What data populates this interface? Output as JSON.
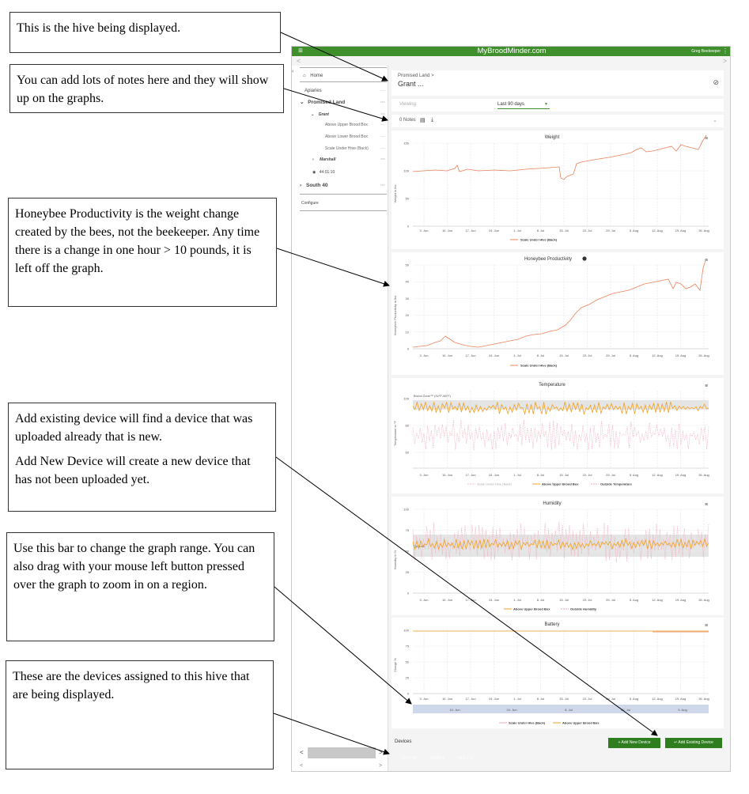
{
  "callouts": {
    "hive": "This is the hive being displayed.",
    "notes": "You can add lots of notes here and they will show up on the graphs.",
    "productivity": "Honeybee Productivity is the weight change created by the bees, not the beekeeper. Any time there is a change in one hour > 10 pounds, it is left off the graph.",
    "devices_add_existing": "Add existing device will find a device that was uploaded already that is new.",
    "devices_add_new": "Add New Device will create a new device that has not been uploaded yet.",
    "range_bar": "Use this bar to change the graph range. You can also drag with your mouse left button pressed over the graph to zoom in on a region.",
    "devices_assigned": "These are the devices assigned to this hive that are being displayed."
  },
  "app": {
    "brand": "MyBroodMinder.com",
    "user": "Greg Beekeeper",
    "menu_icon": "hamburger-icon",
    "nav_back": "<",
    "nav_forward": ">"
  },
  "sidebar": {
    "home": "Home",
    "apiaries": "Apiaries",
    "apiary_promised": "Promised Land",
    "hive_grant": "Grant",
    "device1": "Above Upper Brood Box",
    "device2": "Above Lower Brood Box",
    "device3": "Scale Under Hive (Back)",
    "hive_marshall": "Marshall",
    "hub": "44:01:10",
    "apiary_south": "South 40",
    "configure": "Configure",
    "dots": "···",
    "scroll_left": "<",
    "scroll_right": ">"
  },
  "header": {
    "breadcrumb": "Promised Land >",
    "hive": "Grant ...",
    "check_icon": "⊘"
  },
  "viewing": {
    "label": "Viewing",
    "range": "Last 90 days"
  },
  "notes": {
    "label": "0 Notes",
    "expand_icon": "⌄"
  },
  "x_ticks": [
    "3. Jun",
    "10. Jun",
    "17. Jun",
    "24. Jun",
    "1. Jul",
    "8. Jul",
    "15. Jul",
    "22. Jul",
    "29. Jul",
    "5. Aug",
    "12. Aug",
    "19. Aug",
    "26. Aug"
  ],
  "charts": {
    "weight": {
      "title": "Weight",
      "ylabel": "Weight in lbs",
      "yticks": [
        "150",
        "100",
        "50",
        "0"
      ],
      "legend": "Scale Under Hive (Back)"
    },
    "productivity": {
      "title": "Honeybee Productivity",
      "ylabel": "Honeybee Productivity in lbs",
      "yticks": [
        "50",
        "40",
        "30",
        "20",
        "10",
        "0"
      ],
      "legend": "Scale Under Hive (Back)"
    },
    "temperature": {
      "title": "Temperature",
      "ylabel": "Temperature in °F",
      "yticks": [
        "100",
        "80",
        "60"
      ],
      "band_label": "Brood Zone™ (92°F-98°F)",
      "legend": [
        "Scale Under Hive (Back)",
        "Above Upper Brood Box",
        "Outside Temperature"
      ]
    },
    "humidity": {
      "title": "Humidity",
      "ylabel": "Humidity in %",
      "yticks": [
        "100",
        "75",
        "50",
        "25",
        "0"
      ],
      "band_label": "Optimal",
      "legend": [
        "Above Upper Brood Box",
        "Outside Humidity"
      ]
    },
    "battery": {
      "title": "Battery",
      "ylabel": "Charge %",
      "yticks": [
        "100",
        "75",
        "50",
        "25",
        "0"
      ],
      "legend": [
        "Scale Under Hive (Back)",
        "Above Upper Brood Box"
      ],
      "navigator_ticks": [
        "10. Jun",
        "24. Jun",
        "8. Jul",
        "22. Jul",
        "5. Aug"
      ]
    }
  },
  "devices": {
    "label": "Devices",
    "add_new": "Add New Device",
    "add_existing": "Add Existing Device",
    "chips": [
      {
        "id": "42:06:54",
        "color": "#f0a030"
      },
      {
        "id": "42:08:5F",
        "color": "#e06aa0"
      },
      {
        "id": "43:E0:17",
        "color": "#ef7a50"
      }
    ]
  },
  "colors": {
    "brand_green": "#3f8f2c",
    "weight_line": "#e8825a",
    "upper_brood": "#f0a020",
    "outside": "#f0a6b8"
  }
}
